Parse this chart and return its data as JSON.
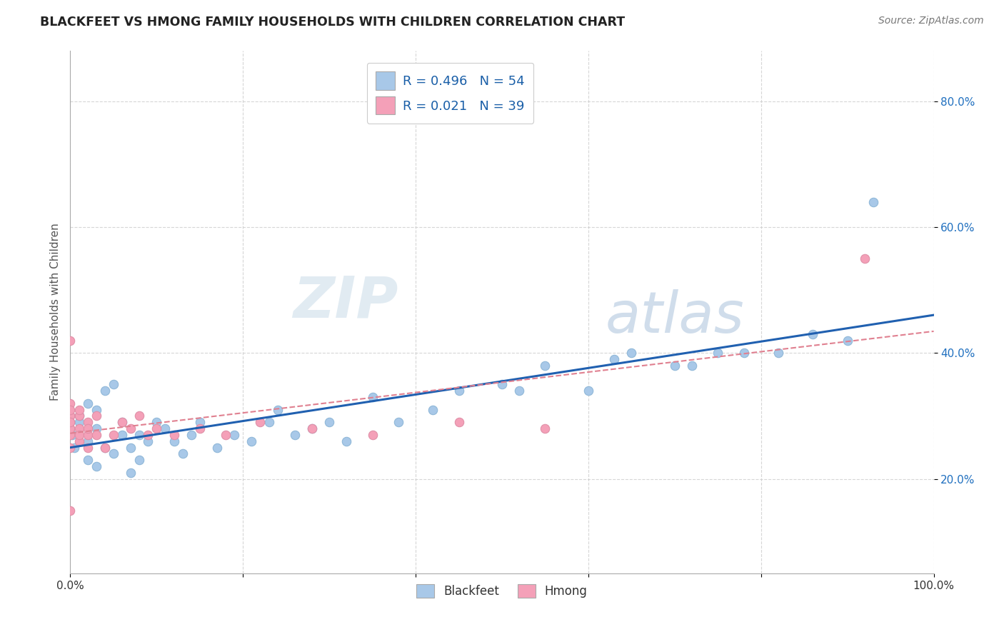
{
  "title": "BLACKFEET VS HMONG FAMILY HOUSEHOLDS WITH CHILDREN CORRELATION CHART",
  "source": "Source: ZipAtlas.com",
  "ylabel": "Family Households with Children",
  "blackfeet_R": 0.496,
  "blackfeet_N": 54,
  "hmong_R": 0.021,
  "hmong_N": 39,
  "blackfeet_color": "#a8c8e8",
  "hmong_color": "#f4a0b8",
  "blackfeet_line_color": "#2060b0",
  "hmong_line_color": "#e08090",
  "background_color": "#ffffff",
  "blackfeet_x": [
    0.002,
    0.005,
    0.01,
    0.01,
    0.02,
    0.02,
    0.02,
    0.03,
    0.03,
    0.03,
    0.04,
    0.04,
    0.05,
    0.05,
    0.06,
    0.06,
    0.07,
    0.07,
    0.08,
    0.08,
    0.09,
    0.1,
    0.11,
    0.12,
    0.13,
    0.14,
    0.15,
    0.17,
    0.19,
    0.21,
    0.23,
    0.24,
    0.26,
    0.28,
    0.3,
    0.32,
    0.35,
    0.38,
    0.42,
    0.45,
    0.5,
    0.52,
    0.55,
    0.6,
    0.63,
    0.65,
    0.7,
    0.72,
    0.75,
    0.78,
    0.82,
    0.86,
    0.9,
    0.93
  ],
  "blackfeet_y": [
    0.27,
    0.25,
    0.29,
    0.3,
    0.23,
    0.26,
    0.32,
    0.22,
    0.28,
    0.31,
    0.25,
    0.34,
    0.24,
    0.35,
    0.27,
    0.29,
    0.21,
    0.25,
    0.23,
    0.27,
    0.26,
    0.29,
    0.28,
    0.26,
    0.24,
    0.27,
    0.29,
    0.25,
    0.27,
    0.26,
    0.29,
    0.31,
    0.27,
    0.28,
    0.29,
    0.26,
    0.33,
    0.29,
    0.31,
    0.34,
    0.35,
    0.34,
    0.38,
    0.34,
    0.39,
    0.4,
    0.38,
    0.38,
    0.4,
    0.4,
    0.4,
    0.43,
    0.42,
    0.64
  ],
  "hmong_x": [
    0.0,
    0.0,
    0.0,
    0.0,
    0.0,
    0.0,
    0.0,
    0.0,
    0.0,
    0.0,
    0.0,
    0.0,
    0.01,
    0.01,
    0.01,
    0.01,
    0.01,
    0.02,
    0.02,
    0.02,
    0.02,
    0.03,
    0.03,
    0.04,
    0.05,
    0.06,
    0.07,
    0.08,
    0.09,
    0.1,
    0.12,
    0.15,
    0.18,
    0.22,
    0.28,
    0.35,
    0.45,
    0.55,
    0.92
  ],
  "hmong_y": [
    0.28,
    0.29,
    0.3,
    0.32,
    0.27,
    0.28,
    0.3,
    0.25,
    0.42,
    0.29,
    0.31,
    0.15,
    0.26,
    0.28,
    0.3,
    0.27,
    0.31,
    0.25,
    0.27,
    0.29,
    0.28,
    0.3,
    0.27,
    0.25,
    0.27,
    0.29,
    0.28,
    0.3,
    0.27,
    0.28,
    0.27,
    0.28,
    0.27,
    0.29,
    0.28,
    0.27,
    0.29,
    0.28,
    0.55
  ],
  "xlim": [
    0.0,
    1.0
  ],
  "ylim": [
    0.05,
    0.88
  ],
  "xticks": [
    0.0,
    0.2,
    0.4,
    0.6,
    0.8,
    1.0
  ],
  "xtick_labels": [
    "0.0%",
    "",
    "",
    "",
    "",
    "100.0%"
  ],
  "ytick_positions": [
    0.2,
    0.4,
    0.6,
    0.8
  ],
  "ytick_labels": [
    "20.0%",
    "40.0%",
    "60.0%",
    "80.0%"
  ],
  "grid_color": "#cccccc",
  "watermark_zip": "ZIP",
  "watermark_atlas": "atlas",
  "legend_label1": "R = 0.496   N = 54",
  "legend_label2": "R = 0.021   N = 39",
  "bottom_legend_blackfeet": "Blackfeet",
  "bottom_legend_hmong": "Hmong"
}
